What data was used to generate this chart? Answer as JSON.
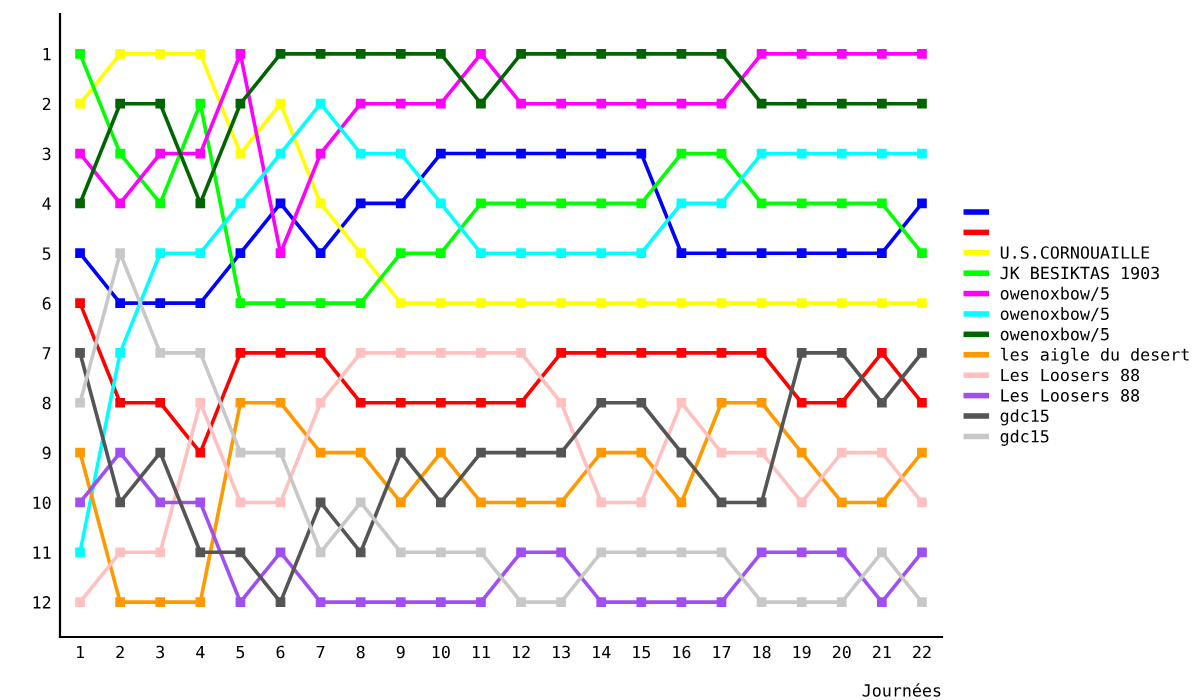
{
  "chart_data": {
    "type": "line",
    "xlabel": "Journées",
    "x": [
      1,
      2,
      3,
      4,
      5,
      6,
      7,
      8,
      9,
      10,
      11,
      12,
      13,
      14,
      15,
      16,
      17,
      18,
      19,
      20,
      21,
      22
    ],
    "xlim": [
      0.5,
      22.5
    ],
    "xticks": [
      1,
      2,
      3,
      4,
      5,
      6,
      7,
      8,
      9,
      10,
      11,
      12,
      13,
      14,
      15,
      16,
      17,
      18,
      19,
      20,
      21,
      22
    ],
    "ylim": [
      12.7,
      0.2
    ],
    "yticks": [
      1,
      2,
      3,
      4,
      5,
      6,
      7,
      8,
      9,
      10,
      11,
      12
    ],
    "marker": "square",
    "line_style": "solid",
    "legend": "right",
    "grid": false,
    "series": [
      {
        "color": "#0000ff",
        "values": [
          5,
          6,
          6,
          6,
          5,
          4,
          5,
          4,
          4,
          3,
          3,
          3,
          3,
          3,
          3,
          5,
          5,
          5,
          5,
          5,
          5,
          4
        ]
      },
      {
        "color": "#ff0000",
        "values": [
          6,
          8,
          8,
          9,
          7,
          7,
          7,
          8,
          8,
          8,
          8,
          8,
          7,
          7,
          7,
          7,
          7,
          7,
          8,
          8,
          7,
          8
        ]
      },
      {
        "name": "U.S.CORNOUAILLE",
        "color": "#ffff00",
        "values": [
          2,
          1,
          1,
          1,
          3,
          2,
          4,
          5,
          6,
          6,
          6,
          6,
          6,
          6,
          6,
          6,
          6,
          6,
          6,
          6,
          6,
          6
        ]
      },
      {
        "name": "JK BESIKTAS 1903",
        "color": "#00ff00",
        "values": [
          1,
          3,
          4,
          2,
          6,
          6,
          6,
          6,
          5,
          5,
          4,
          4,
          4,
          4,
          4,
          3,
          3,
          4,
          4,
          4,
          4,
          5
        ]
      },
      {
        "name": "owenoxbow/5",
        "color": "#ff00ff",
        "values": [
          3,
          4,
          3,
          3,
          1,
          5,
          3,
          2,
          2,
          2,
          1,
          2,
          2,
          2,
          2,
          2,
          2,
          1,
          1,
          1,
          1,
          1
        ]
      },
      {
        "name": "owenoxbow/5",
        "color": "#00ffff",
        "values": [
          11,
          7,
          5,
          5,
          4,
          3,
          2,
          3,
          3,
          4,
          5,
          5,
          5,
          5,
          5,
          4,
          4,
          3,
          3,
          3,
          3,
          3
        ]
      },
      {
        "name": "owenoxbow/5",
        "color": "#006400",
        "values": [
          4,
          2,
          2,
          4,
          2,
          1,
          1,
          1,
          1,
          1,
          2,
          1,
          1,
          1,
          1,
          1,
          1,
          2,
          2,
          2,
          2,
          2
        ]
      },
      {
        "name": "les aigle du desert",
        "color": "#ff9900",
        "values": [
          9,
          12,
          12,
          12,
          8,
          8,
          9,
          9,
          10,
          9,
          10,
          10,
          10,
          9,
          9,
          10,
          8,
          8,
          9,
          10,
          10,
          9
        ]
      },
      {
        "name": "Les Loosers 88",
        "color": "#ffc0c0",
        "values": [
          12,
          11,
          11,
          8,
          10,
          10,
          8,
          7,
          7,
          7,
          7,
          7,
          8,
          10,
          10,
          8,
          9,
          9,
          10,
          9,
          9,
          10
        ]
      },
      {
        "name": "Les Loosers 88",
        "color": "#a050f0",
        "values": [
          10,
          9,
          10,
          10,
          12,
          11,
          12,
          12,
          12,
          12,
          12,
          11,
          11,
          12,
          12,
          12,
          12,
          11,
          11,
          11,
          12,
          11
        ]
      },
      {
        "name": "gdc15",
        "color": "#555555",
        "values": [
          7,
          10,
          9,
          11,
          11,
          12,
          10,
          11,
          9,
          10,
          9,
          9,
          9,
          8,
          8,
          9,
          10,
          10,
          7,
          7,
          8,
          7
        ]
      },
      {
        "name": "gdc15",
        "color": "#c8c8c8",
        "values": [
          8,
          5,
          7,
          7,
          9,
          9,
          11,
          10,
          11,
          11,
          11,
          12,
          12,
          11,
          11,
          11,
          11,
          12,
          12,
          12,
          11,
          12
        ]
      }
    ]
  }
}
